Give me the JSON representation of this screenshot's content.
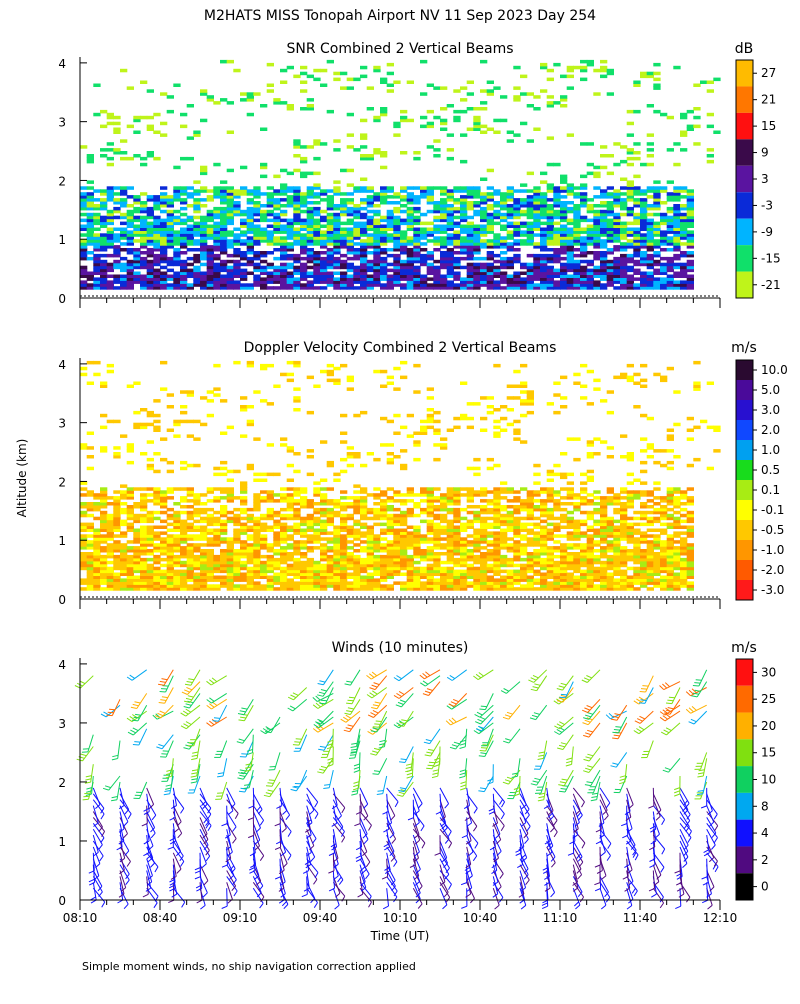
{
  "figure": {
    "title": "M2HATS MISS Tonopah Airport NV  11 Sep 2023 Day 254",
    "ylabel": "Altitude (km)",
    "xlabel": "Time (UT)",
    "footnote": "Simple moment winds, no ship navigation correction applied"
  },
  "chart_data": [
    {
      "type": "heatmap",
      "title": "SNR Combined 2 Vertical Beams",
      "xlabel": "",
      "ylabel": "Altitude (km)",
      "xlim": [
        "08:10",
        "12:10"
      ],
      "ylim": [
        0,
        4.1
      ],
      "yticks": [
        0,
        1,
        2,
        3,
        4
      ],
      "grid": false,
      "colorbar": {
        "unit": "dB",
        "labels": [
          "27",
          "21",
          "15",
          "9",
          "3",
          "-3",
          "-9",
          "-15",
          "-21"
        ],
        "colors": [
          "#ffbb00",
          "#ff7700",
          "#ff1010",
          "#3a0a4a",
          "#5a14a0",
          "#0a2ad8",
          "#00b4ff",
          "#10e06a",
          "#bff41a"
        ]
      },
      "layers": [
        {
          "alt_range": [
            0.15,
            0.9
          ],
          "value_range": [
            -9,
            9
          ],
          "time_range": [
            "08:10",
            "12:00"
          ]
        },
        {
          "alt_range": [
            0.9,
            1.9
          ],
          "value_range": [
            -21,
            -3
          ],
          "time_range": [
            "08:10",
            "12:00"
          ]
        },
        {
          "alt_range": [
            1.9,
            4.0
          ],
          "value_range": [
            -21,
            -15
          ],
          "time_range": [
            "08:10",
            "12:10"
          ],
          "coverage": "sparse"
        }
      ]
    },
    {
      "type": "heatmap",
      "title": "Doppler Velocity Combined 2 Vertical Beams",
      "xlabel": "",
      "ylabel": "Altitude (km)",
      "xlim": [
        "08:10",
        "12:10"
      ],
      "ylim": [
        0,
        4.1
      ],
      "yticks": [
        0,
        1,
        2,
        3,
        4
      ],
      "grid": false,
      "colorbar": {
        "unit": "m/s",
        "labels": [
          "10.0",
          "5.0",
          "3.0",
          "2.0",
          "1.0",
          "0.5",
          "0.1",
          "-0.1",
          "-0.5",
          "-1.0",
          "-2.0",
          "-3.0"
        ],
        "colors": [
          "#2a0a30",
          "#4a0a9a",
          "#2810d0",
          "#1048ff",
          "#00a0f0",
          "#18dc1c",
          "#a8ec14",
          "#ffff00",
          "#ffc800",
          "#ff9600",
          "#ff5a00",
          "#ff1a1a"
        ]
      },
      "layers": [
        {
          "alt_range": [
            0.15,
            1.9
          ],
          "value_range": [
            -1.0,
            0.1
          ],
          "time_range": [
            "08:10",
            "12:00"
          ]
        },
        {
          "alt_range": [
            1.9,
            4.0
          ],
          "value_range": [
            -0.5,
            -0.1
          ],
          "time_range": [
            "08:10",
            "12:10"
          ],
          "coverage": "sparse"
        }
      ]
    },
    {
      "type": "barbs",
      "title": "Winds (10 minutes)",
      "xlabel": "Time (UT)",
      "ylabel": "Altitude (km)",
      "xlim": [
        "08:10",
        "12:10"
      ],
      "ylim": [
        0,
        4.1
      ],
      "xticks": [
        "08:10",
        "08:40",
        "09:10",
        "09:40",
        "10:10",
        "10:40",
        "11:10",
        "11:40",
        "12:10"
      ],
      "yticks": [
        0,
        1,
        2,
        3,
        4
      ],
      "grid": false,
      "colorbar": {
        "unit": "m/s",
        "labels": [
          "30",
          "25",
          "20",
          "15",
          "10",
          "8",
          "4",
          "2",
          "0"
        ],
        "colors": [
          "#ff1010",
          "#ff6a00",
          "#ffb000",
          "#80e010",
          "#10d060",
          "#00a8f0",
          "#1010ff",
          "#500a80",
          "#000000"
        ]
      },
      "wind_profile": {
        "interval_min": 10,
        "alt_range": [
          0.2,
          4.0
        ],
        "speed_ranges": [
          {
            "alt_range": [
              0.2,
              2.0
            ],
            "speed": [
              2,
              8
            ],
            "direction": "from the south-southeast"
          },
          {
            "alt_range": [
              2.0,
              3.0
            ],
            "speed": [
              8,
              20
            ],
            "direction": "from the south-southwest"
          },
          {
            "alt_range": [
              3.0,
              4.0
            ],
            "speed": [
              8,
              30
            ],
            "direction": "from the southwest"
          }
        ]
      }
    }
  ]
}
